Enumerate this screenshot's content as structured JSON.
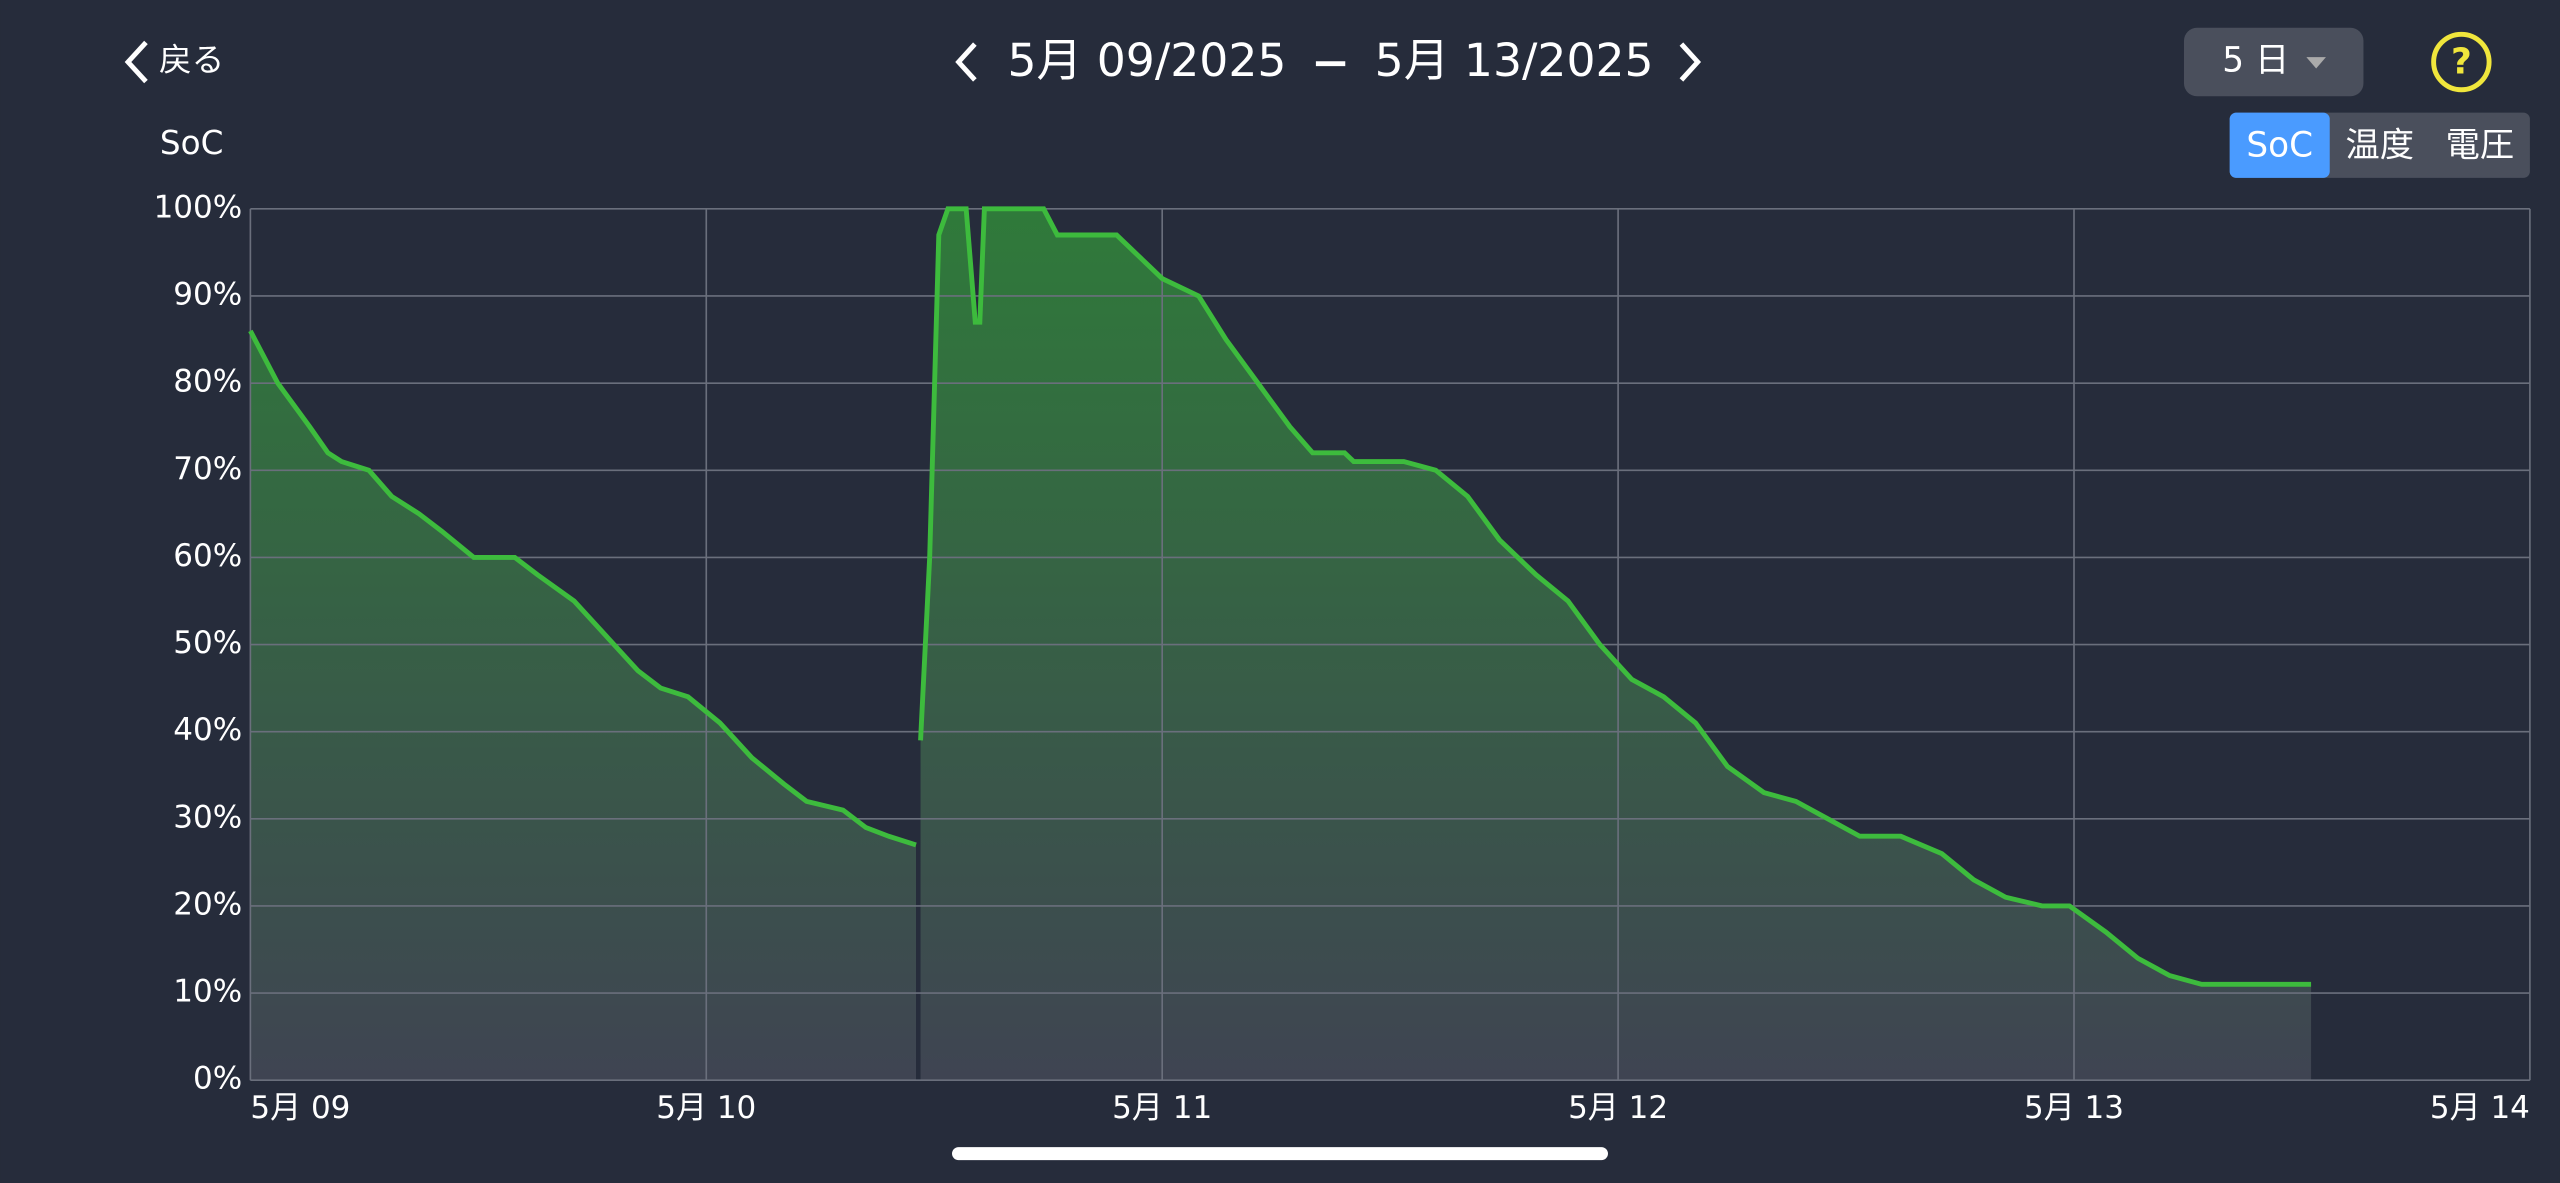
{
  "header": {
    "back": "戻る",
    "range_start": "5月 09/2025",
    "range_end": "5月 13/2025",
    "period": "5 日",
    "help": "?"
  },
  "tabs": [
    "SoC",
    "温度",
    "電圧"
  ],
  "active_tab": 0,
  "chart_data": {
    "type": "area",
    "y_label": "SoC",
    "color": "#3dbb3d",
    "grid": true,
    "xlim": [
      9,
      14
    ],
    "xticks": [
      {
        "value": 9,
        "label": "5月 09"
      },
      {
        "value": 10,
        "label": "5月 10"
      },
      {
        "value": 11,
        "label": "5月 11"
      },
      {
        "value": 12,
        "label": "5月 12"
      },
      {
        "value": 13,
        "label": "5月 13"
      },
      {
        "value": 14,
        "label": "5月 14"
      }
    ],
    "ylim": [
      0,
      100
    ],
    "yticks": [
      {
        "value": 0,
        "label": "0%"
      },
      {
        "value": 10,
        "label": "10%"
      },
      {
        "value": 20,
        "label": "20%"
      },
      {
        "value": 30,
        "label": "30%"
      },
      {
        "value": 40,
        "label": "40%"
      },
      {
        "value": 50,
        "label": "50%"
      },
      {
        "value": 60,
        "label": "60%"
      },
      {
        "value": 70,
        "label": "70%"
      },
      {
        "value": 80,
        "label": "80%"
      },
      {
        "value": 90,
        "label": "90%"
      },
      {
        "value": 100,
        "label": "100%"
      }
    ],
    "x": [
      9,
      9.06,
      9.13,
      9.17,
      9.2,
      9.26,
      9.31,
      9.37,
      9.42,
      9.49,
      9.58,
      9.63,
      9.71,
      9.78,
      9.85,
      9.9,
      9.96,
      10.03,
      10.1,
      10.17,
      10.22,
      10.3,
      10.35,
      10.4,
      10.46,
      10.465,
      10.47,
      10.49,
      10.51,
      10.53,
      10.57,
      10.59,
      10.6,
      10.61,
      10.74,
      10.77,
      10.9,
      10.96,
      11,
      11.08,
      11.14,
      11.21,
      11.28,
      11.33,
      11.4,
      11.42,
      11.53,
      11.6,
      11.67,
      11.74,
      11.82,
      11.89,
      11.96,
      12.03,
      12.1,
      12.17,
      12.24,
      12.32,
      12.39,
      12.46,
      12.53,
      12.62,
      12.71,
      12.78,
      12.85,
      12.93,
      12.99,
      13.07,
      13.14,
      13.21,
      13.28,
      13.52
    ],
    "values": [
      86,
      80,
      75,
      72,
      71,
      70,
      67,
      65,
      63,
      60,
      60,
      58,
      55,
      51,
      47,
      45,
      44,
      41,
      37,
      34,
      32,
      31,
      29,
      28,
      27,
      null,
      39,
      60,
      97,
      100,
      100,
      87,
      87,
      100,
      100,
      97,
      97,
      94,
      92,
      90,
      85,
      80,
      75,
      72,
      72,
      71,
      71,
      70,
      67,
      62,
      58,
      55,
      50,
      46,
      44,
      41,
      36,
      33,
      32,
      30,
      28,
      28,
      26,
      23,
      21,
      20,
      20,
      17,
      14,
      12,
      11,
      11
    ]
  }
}
